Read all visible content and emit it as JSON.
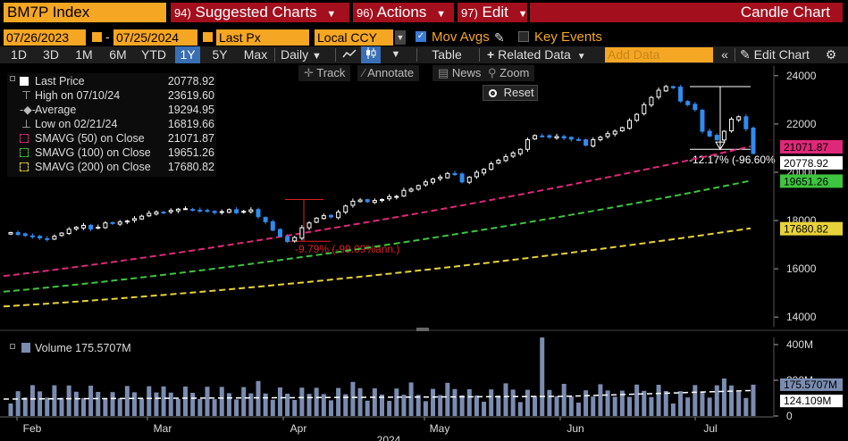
{
  "title_bar": {
    "ticker": "BM7P Index",
    "menus": [
      {
        "num": "94)",
        "label": "Suggested Charts"
      },
      {
        "num": "96)",
        "label": "Actions"
      },
      {
        "num": "97)",
        "label": "Edit"
      }
    ],
    "chart_type": "Candle Chart"
  },
  "date_row": {
    "start_date": "07/26/2023",
    "end_date": "07/25/2024",
    "price_field": "Last Px",
    "currency": "Local CCY",
    "mov_avgs_label": "Mov Avgs",
    "key_events_label": "Key Events",
    "mov_avgs_checked": true,
    "key_events_checked": false
  },
  "toolbar": {
    "periods": [
      "1D",
      "3D",
      "1M",
      "6M",
      "YTD",
      "1Y",
      "5Y",
      "Max"
    ],
    "active_period": "1Y",
    "frequency": "Daily",
    "table_label": "Table",
    "related_data_label": "Related Data",
    "add_data_placeholder": "Add Data",
    "edit_chart_label": "Edit Chart"
  },
  "tools": {
    "track": "Track",
    "annotate": "Annotate",
    "news": "News",
    "zoom": "Zoom",
    "reset": "Reset"
  },
  "legend": [
    {
      "name": "Last Price",
      "value": "20778.92",
      "color": "#ffffff",
      "icon": "box-icon"
    },
    {
      "name": "High on 07/10/24",
      "value": "23619.60",
      "color": "#dddddd",
      "icon": "high-marker-icon"
    },
    {
      "name": "Average",
      "value": "19294.95",
      "color": "#dddddd",
      "icon": "average-marker-icon"
    },
    {
      "name": "Low on 02/21/24",
      "value": "16819.66",
      "color": "#dddddd",
      "icon": "low-marker-icon"
    },
    {
      "name": "SMAVG (50)  on Close",
      "value": "21071.87",
      "color": "#e0287a",
      "icon": "dashed-box-icon"
    },
    {
      "name": "SMAVG (100)  on Close",
      "value": "19651.26",
      "color": "#3ec43e",
      "icon": "dashed-box-icon"
    },
    {
      "name": "SMAVG (200)  on Close",
      "value": "17680.82",
      "color": "#e8d23a",
      "icon": "dashed-box-icon"
    }
  ],
  "volume_legend": {
    "label": "Volume 175.5707M",
    "color": "#7a8cb0"
  },
  "price_axis": {
    "ticks": [
      "24000",
      "22000",
      "20000",
      "18000",
      "16000",
      "14000"
    ],
    "tags": [
      {
        "text": "21071.87",
        "bg": "#e0287a",
        "fg": "#000000"
      },
      {
        "text": "20778.92",
        "bg": "#ffffff",
        "fg": "#000000"
      },
      {
        "text": "19651.26",
        "bg": "#3ec43e",
        "fg": "#000000"
      },
      {
        "text": "17680.82",
        "bg": "#e8d23a",
        "fg": "#000000"
      }
    ]
  },
  "volume_axis": {
    "ticks": [
      "400M",
      "200M",
      "0"
    ],
    "tags": [
      {
        "text": "175.5707M",
        "bg": "#7a8cb0",
        "fg": "#000000"
      },
      {
        "text": "124.109M",
        "bg": "#ffffff",
        "fg": "#000000"
      }
    ]
  },
  "x_axis": {
    "months": [
      "Feb",
      "Mar",
      "Apr",
      "May",
      "Jun",
      "Jul"
    ],
    "year": "2024"
  },
  "annotations": {
    "drawdown_april": "-9.79% (-99.09%ann.)",
    "drawdown_july": "-12.17% (-96.60%"
  },
  "colors": {
    "up": "#ffffff",
    "down": "#2f8cf0",
    "sma50": "#e0287a",
    "sma100": "#3ec43e",
    "sma200": "#e8d23a",
    "volume": "#7a8cb0",
    "annotation": "#e02020",
    "accent": "#f5a623",
    "menu_red": "#a30f1d"
  },
  "chart_data": {
    "type": "candlestick",
    "x_range": [
      "2024-01-29",
      "2024-07-25"
    ],
    "ylim": [
      13600,
      24400
    ],
    "yticks": [
      14000,
      16000,
      18000,
      20000,
      22000,
      24000
    ],
    "close": [
      17500,
      17420,
      17380,
      17330,
      17280,
      17230,
      17350,
      17480,
      17640,
      17720,
      17800,
      17650,
      17720,
      17900,
      17880,
      17940,
      17980,
      18080,
      18180,
      18300,
      18350,
      18330,
      18420,
      18470,
      18490,
      18430,
      18390,
      18400,
      18330,
      18370,
      18450,
      18320,
      18380,
      18440,
      18160,
      17950,
      17600,
      17350,
      17140,
      17300,
      17700,
      17900,
      18100,
      18200,
      18150,
      18350,
      18600,
      18800,
      18850,
      18780,
      18830,
      18870,
      18990,
      19000,
      19250,
      19300,
      19450,
      19600,
      19720,
      19800,
      19950,
      19900,
      19600,
      19800,
      20000,
      20120,
      20350,
      20500,
      20650,
      20800,
      20950,
      21350,
      21520,
      21500,
      21450,
      21480,
      21420,
      21370,
      21330,
      21120,
      21350,
      21450,
      21600,
      21700,
      21850,
      22150,
      22400,
      22800,
      23100,
      23400,
      23550,
      23500,
      22950,
      22800,
      22600,
      21700,
      21500,
      21350,
      21700,
      22200,
      22300,
      21800,
      20780
    ],
    "sma50_range": [
      15700,
      21070
    ],
    "sma100_range": [
      15050,
      19650
    ],
    "sma200_range": [
      14440,
      17680
    ],
    "volume_units": "M",
    "volume_ylim": [
      0,
      440
    ],
    "volume_last": 175.57,
    "volume_avg": 124.109,
    "volume_spike_max": 440
  }
}
